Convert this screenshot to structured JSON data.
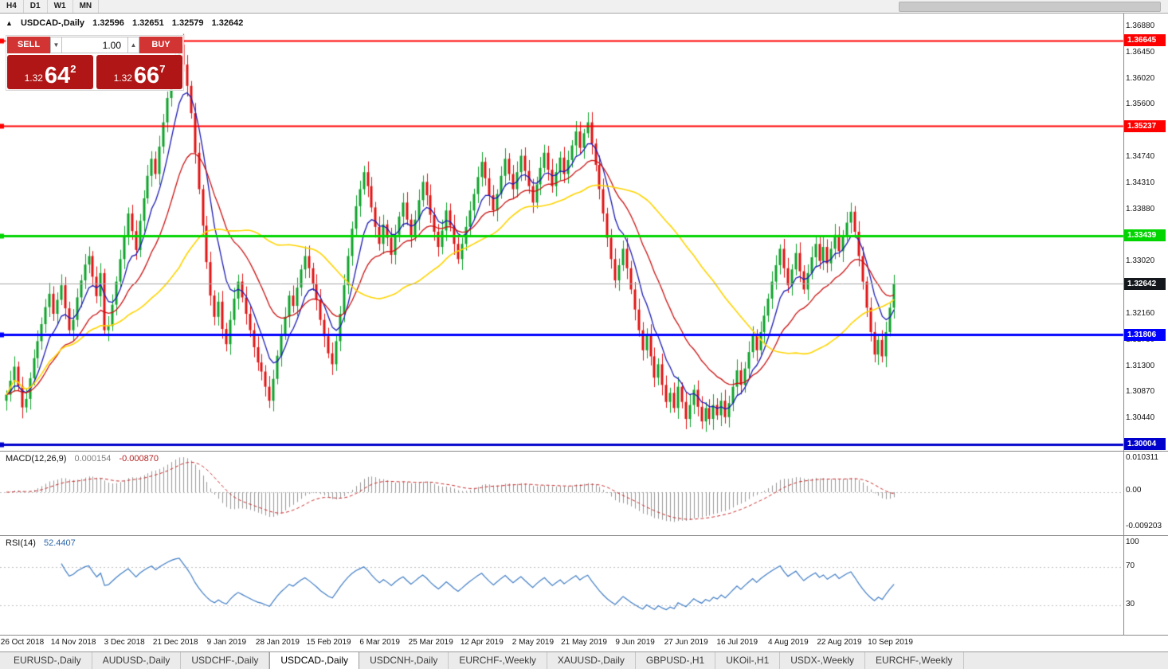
{
  "toolbar": {
    "timeframes": [
      "H4",
      "D1",
      "W1",
      "MN"
    ]
  },
  "chart": {
    "header": {
      "arrow": "▲",
      "title": "USDCAD-,Daily",
      "open": "1.32596",
      "high": "1.32651",
      "low": "1.32579",
      "close": "1.32642"
    },
    "trade_panel": {
      "sell_label": "SELL",
      "buy_label": "BUY",
      "volume": "1.00",
      "volume_down_icon": "▼",
      "volume_up_icon": "▲",
      "sell_price_prefix": "1.32",
      "sell_price_big": "64",
      "sell_price_sup": "2",
      "buy_price_prefix": "1.32",
      "buy_price_big": "66",
      "buy_price_sup": "7",
      "button_color": "#d23434",
      "price_box_color": "#b01616"
    }
  },
  "chart_data": {
    "type": "candlestick",
    "symbol": "USDCAD-",
    "timeframe": "Daily",
    "up_color": "#0fa32b",
    "down_color": "#e01414",
    "first_open": 1.3072,
    "closes": [
      1.3082,
      1.3105,
      1.3128,
      1.3096,
      1.3061,
      1.3075,
      1.3109,
      1.3142,
      1.317,
      1.3198,
      1.3226,
      1.3248,
      1.3215,
      1.3238,
      1.3262,
      1.3224,
      1.3188,
      1.3205,
      1.3242,
      1.327,
      1.3296,
      1.331,
      1.3276,
      1.3244,
      1.3282,
      1.3188,
      1.3195,
      1.323,
      1.3268,
      1.3305,
      1.3342,
      1.338,
      1.3351,
      1.332,
      1.3368,
      1.3405,
      1.3442,
      1.347,
      1.3445,
      1.349,
      1.353,
      1.357,
      1.361,
      1.364,
      1.3658,
      1.3625,
      1.359,
      1.3545,
      1.348,
      1.342,
      1.336,
      1.33,
      1.3245,
      1.321,
      1.3235,
      1.319,
      1.3165,
      1.3205,
      1.324,
      1.3268,
      1.3242,
      1.3215,
      1.3188,
      1.316,
      1.3135,
      1.312,
      1.3095,
      1.3072,
      1.3108,
      1.3146,
      1.318,
      1.321,
      1.3245,
      1.3228,
      1.3258,
      1.3288,
      1.331,
      1.329,
      1.3265,
      1.3238,
      1.3205,
      1.3178,
      1.315,
      1.3132,
      1.317,
      1.3215,
      1.3262,
      1.331,
      1.3355,
      1.3392,
      1.342,
      1.3448,
      1.3425,
      1.339,
      1.3358,
      1.333,
      1.3362,
      1.334,
      1.3312,
      1.3345,
      1.3375,
      1.3398,
      1.337,
      1.3342,
      1.337,
      1.3402,
      1.3432,
      1.341,
      1.3378,
      1.335,
      1.3325,
      1.3352,
      1.3385,
      1.336,
      1.333,
      1.3305,
      1.333,
      1.3358,
      1.3385,
      1.3412,
      1.344,
      1.3465,
      1.3438,
      1.341,
      1.3385,
      1.3412,
      1.3442,
      1.347,
      1.3445,
      1.342,
      1.3448,
      1.3475,
      1.345,
      1.3425,
      1.3398,
      1.3428,
      1.3455,
      1.348,
      1.3452,
      1.3425,
      1.3448,
      1.3472,
      1.3445,
      1.3468,
      1.3492,
      1.3515,
      1.3488,
      1.3512,
      1.353,
      1.3495,
      1.346,
      1.342,
      1.338,
      1.334,
      1.3305,
      1.327,
      1.3295,
      1.3322,
      1.329,
      1.3255,
      1.3222,
      1.3188,
      1.3155,
      1.318,
      1.3145,
      1.311,
      1.3132,
      1.3098,
      1.307,
      1.3085,
      1.306,
      1.3095,
      1.307,
      1.3042,
      1.3065,
      1.309,
      1.3062,
      1.3038,
      1.306,
      1.3042,
      1.3065,
      1.3048,
      1.3072,
      1.3045,
      1.3068,
      1.3095,
      1.3122,
      1.3098,
      1.3125,
      1.3152,
      1.318,
      1.3155,
      1.3185,
      1.3212,
      1.324,
      1.3268,
      1.3295,
      1.3322,
      1.329,
      1.3262,
      1.3288,
      1.3315,
      1.3285,
      1.3255,
      1.3282,
      1.3308,
      1.333,
      1.3302,
      1.3325,
      1.3298,
      1.3322,
      1.3345,
      1.3318,
      1.3342,
      1.3365,
      1.3383,
      1.335,
      1.331,
      1.3268,
      1.3225,
      1.3185,
      1.3148,
      1.3172,
      1.3145,
      1.3185,
      1.3225,
      1.3264
    ],
    "y_axis_top_value": 1.3688,
    "y_axis_step": 0.0043,
    "y_axis_labels": [
      "1.36880",
      "1.36450",
      "1.36020",
      "1.35600",
      "1.35170",
      "1.34740",
      "1.34310",
      "1.33880",
      "1.33450",
      "1.33020",
      "1.32590",
      "1.32160",
      "1.31730",
      "1.31300",
      "1.30870",
      "1.30440",
      "1.30010"
    ],
    "x_labels": [
      "26 Oct 2018",
      "14 Nov 2018",
      "3 Dec 2018",
      "21 Dec 2018",
      "9 Jan 2019",
      "28 Jan 2019",
      "15 Feb 2019",
      "6 Mar 2019",
      "25 Mar 2019",
      "12 Apr 2019",
      "2 May 2019",
      "21 May 2019",
      "9 Jun 2019",
      "27 Jun 2019",
      "16 Jul 2019",
      "4 Aug 2019",
      "22 Aug 2019",
      "10 Sep 2019"
    ],
    "x_label_indices": [
      0,
      13,
      26,
      39,
      52,
      65,
      78,
      91,
      104,
      117,
      130,
      143,
      156,
      169,
      182,
      195,
      208,
      221
    ],
    "levels": [
      {
        "price": 1.36645,
        "label": "1.36645",
        "color": "#ff0000",
        "thickness": 2
      },
      {
        "price": 1.35237,
        "label": "1.35237",
        "color": "#ff0000",
        "thickness": 2
      },
      {
        "price": 1.33439,
        "label": "1.33439",
        "color": "#00d500",
        "thickness": 3
      },
      {
        "price": 1.31806,
        "label": "1.31806",
        "color": "#0000ff",
        "thickness": 3
      },
      {
        "price": 1.30004,
        "label": "1.30004",
        "color": "#0000cd",
        "thickness": 3
      }
    ],
    "current_price": {
      "value": 1.32642,
      "label": "1.32642",
      "badge_color": "#14181d",
      "line_color": "#a8a8a8"
    },
    "moving_averages": [
      {
        "type": "ema",
        "period": 8,
        "color": "#1a1ab4",
        "width": 1.3
      },
      {
        "type": "ema",
        "period": 21,
        "color": "#cc1111",
        "width": 1.3
      },
      {
        "type": "sma",
        "period": 45,
        "color": "#ffd400",
        "width": 1.6
      }
    ],
    "macd": {
      "label": "MACD(12,26,9)",
      "fast": 12,
      "slow": 26,
      "signal_period": 9,
      "main_value": "0.000154",
      "signal_value": "-0.000870",
      "axis_labels": [
        "0.010311",
        "0.00",
        "-0.009203"
      ],
      "histogram_color": "#999999",
      "signal_color": "#c82a2a"
    },
    "rsi": {
      "label": "RSI(14)",
      "period": 14,
      "value": "52.4407",
      "axis_labels": [
        "100",
        "70",
        "30"
      ],
      "level_lines": [
        70,
        30
      ],
      "line_color": "#3f7cc4"
    }
  },
  "tabs": {
    "items": [
      {
        "label": "EURUSD-,Daily",
        "active": false
      },
      {
        "label": "AUDUSD-,Daily",
        "active": false
      },
      {
        "label": "USDCHF-,Daily",
        "active": false
      },
      {
        "label": "USDCAD-,Daily",
        "active": true
      },
      {
        "label": "USDCNH-,Daily",
        "active": false
      },
      {
        "label": "EURCHF-,Weekly",
        "active": false
      },
      {
        "label": "XAUUSD-,Daily",
        "active": false
      },
      {
        "label": "GBPUSD-,H1",
        "active": false
      },
      {
        "label": "UKOil-,H1",
        "active": false
      },
      {
        "label": "USDX-,Weekly",
        "active": false
      },
      {
        "label": "EURCHF-,Weekly",
        "active": false
      }
    ]
  }
}
